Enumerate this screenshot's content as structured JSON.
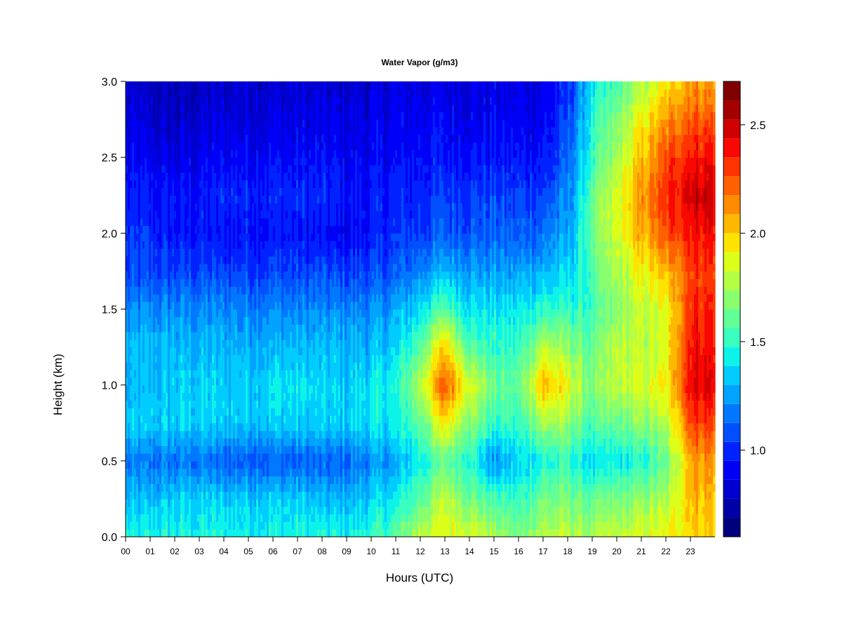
{
  "chart_data": {
    "type": "heatmap",
    "title": "Water Vapor (g/m3)",
    "xlabel": "Hours (UTC)",
    "ylabel": "Height (km)",
    "xlim": [
      0,
      24
    ],
    "ylim": [
      0,
      3
    ],
    "x_ticks": [
      "00",
      "01",
      "02",
      "03",
      "04",
      "05",
      "06",
      "07",
      "08",
      "09",
      "10",
      "11",
      "12",
      "13",
      "14",
      "15",
      "16",
      "17",
      "18",
      "19",
      "20",
      "21",
      "22",
      "23"
    ],
    "y_ticks": [
      "0.0",
      "0.5",
      "1.0",
      "1.5",
      "2.0",
      "2.5",
      "3.0"
    ],
    "colorbar": {
      "min": 0.6,
      "max": 2.7,
      "step": 0.1,
      "ticks": [
        "1.0",
        "1.5",
        "2.0",
        "2.5"
      ],
      "colors": [
        "#00007F",
        "#0000A8",
        "#0000D0",
        "#0000F8",
        "#0022FF",
        "#0050FF",
        "#0078FF",
        "#00A4FF",
        "#00CCFF",
        "#0CF4EA",
        "#3AFFBE",
        "#62FF96",
        "#8AFF6E",
        "#B4FF44",
        "#DCFF1A",
        "#FFE400",
        "#FFB800",
        "#FF8C00",
        "#FF6000",
        "#FF3400",
        "#F80800",
        "#D00000",
        "#A40000",
        "#7F0000"
      ]
    },
    "x_hours": [
      0,
      1,
      2,
      3,
      4,
      5,
      6,
      7,
      8,
      9,
      10,
      11,
      12,
      13,
      14,
      15,
      16,
      17,
      18,
      19,
      20,
      21,
      22,
      23,
      24
    ],
    "y_km": [
      0,
      0.25,
      0.5,
      0.75,
      1,
      1.25,
      1.5,
      1.75,
      2,
      2.25,
      2.5,
      2.75,
      3
    ],
    "values": [
      [
        1.45,
        1.3,
        1.15,
        1.35,
        1.25,
        1.3,
        1.2,
        1.05,
        1.0,
        0.95,
        0.9,
        0.85,
        0.8
      ],
      [
        1.45,
        1.3,
        1.15,
        1.35,
        1.3,
        1.3,
        1.2,
        1.05,
        1.0,
        0.95,
        0.88,
        0.82,
        0.78
      ],
      [
        1.45,
        1.35,
        1.15,
        1.35,
        1.35,
        1.3,
        1.2,
        1.05,
        0.95,
        0.95,
        0.85,
        0.8,
        0.76
      ],
      [
        1.45,
        1.35,
        1.15,
        1.35,
        1.35,
        1.3,
        1.2,
        1.05,
        0.95,
        0.95,
        0.88,
        0.82,
        0.78
      ],
      [
        1.45,
        1.35,
        1.1,
        1.35,
        1.35,
        1.3,
        1.2,
        1.05,
        0.95,
        1.0,
        0.9,
        0.85,
        0.8
      ],
      [
        1.45,
        1.35,
        1.12,
        1.35,
        1.35,
        1.3,
        1.2,
        1.05,
        0.95,
        1.0,
        0.92,
        0.86,
        0.82
      ],
      [
        1.45,
        1.35,
        1.1,
        1.35,
        1.4,
        1.3,
        1.2,
        1.05,
        0.95,
        1.0,
        0.92,
        0.86,
        0.82
      ],
      [
        1.45,
        1.35,
        1.1,
        1.35,
        1.4,
        1.3,
        1.2,
        1.05,
        0.95,
        1.0,
        0.92,
        0.86,
        0.82
      ],
      [
        1.45,
        1.3,
        1.1,
        1.35,
        1.35,
        1.3,
        1.2,
        1.05,
        0.9,
        1.0,
        0.92,
        0.86,
        0.82
      ],
      [
        1.45,
        1.3,
        1.12,
        1.35,
        1.35,
        1.3,
        1.2,
        1.05,
        0.9,
        0.95,
        0.9,
        0.86,
        0.82
      ],
      [
        1.5,
        1.35,
        1.2,
        1.4,
        1.4,
        1.3,
        1.2,
        1.05,
        0.95,
        0.95,
        0.9,
        0.86,
        0.82
      ],
      [
        1.6,
        1.4,
        1.25,
        1.4,
        1.45,
        1.35,
        1.25,
        1.1,
        1.0,
        0.98,
        0.92,
        0.88,
        0.84
      ],
      [
        1.8,
        1.6,
        1.45,
        1.6,
        1.8,
        1.6,
        1.4,
        1.2,
        1.05,
        1.0,
        0.95,
        0.9,
        0.86
      ],
      [
        1.9,
        1.8,
        1.6,
        1.95,
        2.25,
        2.0,
        1.6,
        1.3,
        1.1,
        1.05,
        0.95,
        0.9,
        0.86
      ],
      [
        1.9,
        1.65,
        1.5,
        1.7,
        1.9,
        1.6,
        1.4,
        1.25,
        1.1,
        1.05,
        0.95,
        0.9,
        0.86
      ],
      [
        1.75,
        1.55,
        1.2,
        1.5,
        1.6,
        1.5,
        1.4,
        1.25,
        1.1,
        1.05,
        0.95,
        0.9,
        0.86
      ],
      [
        1.65,
        1.5,
        1.35,
        1.5,
        1.6,
        1.5,
        1.4,
        1.25,
        1.1,
        1.05,
        0.95,
        0.9,
        0.86
      ],
      [
        1.8,
        1.65,
        1.45,
        1.75,
        2.05,
        1.8,
        1.5,
        1.3,
        1.15,
        1.05,
        0.95,
        0.9,
        0.86
      ],
      [
        1.8,
        1.65,
        1.5,
        1.7,
        1.9,
        1.7,
        1.5,
        1.35,
        1.25,
        1.2,
        1.1,
        1.05,
        1.0
      ],
      [
        1.75,
        1.6,
        1.35,
        1.55,
        1.65,
        1.6,
        1.5,
        1.55,
        1.6,
        1.6,
        1.5,
        1.45,
        1.4
      ],
      [
        1.8,
        1.65,
        1.4,
        1.6,
        1.8,
        1.8,
        1.7,
        1.75,
        1.85,
        1.85,
        1.75,
        1.65,
        1.55
      ],
      [
        1.85,
        1.7,
        1.45,
        1.7,
        1.85,
        1.8,
        1.8,
        1.9,
        2.05,
        2.1,
        2.0,
        1.9,
        1.75
      ],
      [
        1.9,
        1.75,
        1.6,
        1.75,
        1.9,
        1.85,
        1.85,
        2.0,
        2.25,
        2.3,
        2.25,
        2.1,
        1.9
      ],
      [
        2.0,
        2.05,
        2.1,
        2.3,
        2.45,
        2.4,
        2.35,
        2.3,
        2.4,
        2.5,
        2.4,
        2.25,
        2.1
      ],
      [
        2.0,
        2.05,
        2.1,
        2.3,
        2.45,
        2.4,
        2.35,
        2.3,
        2.4,
        2.5,
        2.4,
        2.25,
        2.1
      ]
    ]
  }
}
